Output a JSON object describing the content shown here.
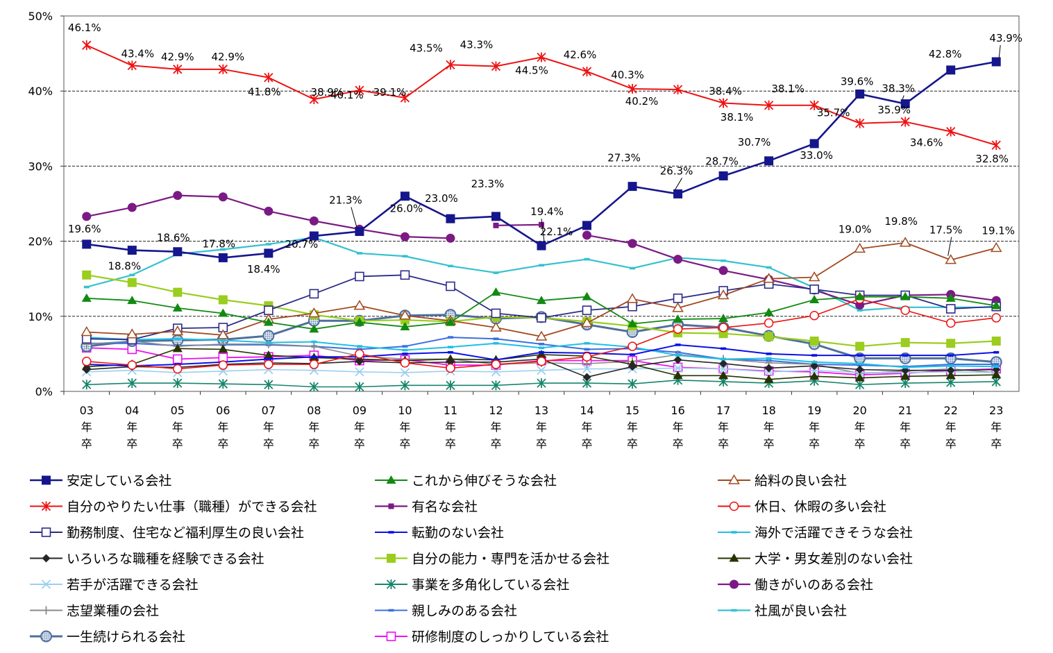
{
  "chart_data": {
    "type": "line",
    "ylim": [
      0,
      50
    ],
    "yticks": [
      0,
      10,
      20,
      30,
      40,
      50
    ],
    "ytick_labels": [
      "0%",
      "10%",
      "20%",
      "30%",
      "40%",
      "50%"
    ],
    "categories": [
      "03",
      "04",
      "05",
      "06",
      "07",
      "08",
      "09",
      "10",
      "11",
      "12",
      "13",
      "14",
      "15",
      "16",
      "17",
      "18",
      "19",
      "20",
      "21",
      "22",
      "23"
    ],
    "category_suffix": [
      "年",
      "卒"
    ],
    "legend_position": "bottom",
    "series": [
      {
        "name": "安定している会社",
        "color": "#16168c",
        "marker": "square-filled",
        "lw": 2.6,
        "values": [
          19.6,
          18.8,
          18.6,
          17.8,
          18.4,
          20.7,
          21.3,
          26.0,
          23.0,
          23.3,
          19.4,
          22.1,
          27.3,
          26.3,
          28.7,
          30.7,
          33.0,
          39.6,
          38.3,
          42.8,
          43.9
        ],
        "labels": [
          "19.6%",
          "18.8%",
          "18.6%",
          "17.8%",
          "18.4%",
          "20.7%",
          "21.3%",
          "26.0%",
          "23.0%",
          "23.3%",
          "19.4%",
          "22.1%",
          "27.3%",
          "26.3%",
          "28.7%",
          "30.7%",
          "33.0%",
          "39.6%",
          "38.3%",
          "42.8%",
          "43.9%"
        ]
      },
      {
        "name": "これから伸びそうな会社",
        "color": "#128a12",
        "marker": "triangle-filled",
        "lw": 1.8,
        "values": [
          12.4,
          12.1,
          11.1,
          10.4,
          9.2,
          8.3,
          9.2,
          8.6,
          9.2,
          13.2,
          12.1,
          12.6,
          9.0,
          9.6,
          9.7,
          10.5,
          12.2,
          12.6,
          12.6,
          12.4,
          11.4
        ]
      },
      {
        "name": "給料の良い会社",
        "color": "#a0491e",
        "marker": "triangle-open",
        "lw": 1.8,
        "values": [
          7.9,
          7.6,
          8.0,
          7.5,
          9.6,
          10.4,
          11.4,
          10.1,
          9.4,
          8.5,
          7.3,
          9.1,
          12.3,
          11.1,
          12.8,
          15.0,
          15.2,
          19.0,
          19.8,
          17.5,
          19.1
        ],
        "labels": [
          "",
          "",
          "",
          "",
          "",
          "",
          "",
          "",
          "",
          "",
          "",
          "",
          "",
          "",
          "",
          "",
          "",
          "19.0%",
          "19.8%",
          "17.5%",
          "19.1%"
        ]
      },
      {
        "name": "自分のやりたい仕事（職種）ができる会社",
        "color": "#ee1111",
        "marker": "star",
        "lw": 2.0,
        "values": [
          46.1,
          43.4,
          42.9,
          42.9,
          41.8,
          38.9,
          40.1,
          39.1,
          43.5,
          43.3,
          44.5,
          42.6,
          40.3,
          40.2,
          38.4,
          38.1,
          38.1,
          35.7,
          35.9,
          34.6,
          32.8
        ],
        "labels": [
          "46.1%",
          "43.4%",
          "42.9%",
          "42.9%",
          "41.8%",
          "38.9%",
          "40.1%",
          "39.1%",
          "43.5%",
          "43.3%",
          "44.5%",
          "42.6%",
          "40.3%",
          "40.2%",
          "38.4%",
          "38.1%",
          "38.1%",
          "35.7%",
          "35.9%",
          "34.6%",
          "32.8%"
        ]
      },
      {
        "name": "有名な会社",
        "color": "#7b1a84",
        "marker": "square-filled-small",
        "lw": 2.2,
        "values": [
          null,
          null,
          null,
          null,
          null,
          null,
          null,
          null,
          null,
          22.1,
          22.2,
          null,
          null,
          null,
          null,
          null,
          null,
          null,
          null,
          null,
          null
        ]
      },
      {
        "name": "休日、休暇の多い会社",
        "color": "#ee1111",
        "marker": "circle-open",
        "lw": 1.6,
        "values": [
          4.0,
          3.5,
          3.0,
          3.5,
          3.6,
          3.6,
          5.0,
          3.8,
          3.1,
          3.6,
          4.0,
          4.6,
          6.0,
          8.3,
          8.5,
          9.1,
          10.1,
          12.3,
          10.8,
          9.1,
          9.8
        ]
      },
      {
        "name": "勤務制度、住宅など福利厚生の良い会社",
        "color": "#2b2b88",
        "marker": "square-open",
        "lw": 1.8,
        "values": [
          7.0,
          6.9,
          8.4,
          8.5,
          10.8,
          13.0,
          15.3,
          15.5,
          14.0,
          10.4,
          9.8,
          10.8,
          11.3,
          12.4,
          13.4,
          14.3,
          13.6,
          12.8,
          12.8,
          11.0,
          11.3
        ]
      },
      {
        "name": "転勤のない会社",
        "color": "#0b10e8",
        "marker": "dash",
        "lw": 2.0,
        "values": [
          3.6,
          3.4,
          3.6,
          3.9,
          4.3,
          4.6,
          4.6,
          5.0,
          5.2,
          4.2,
          5.2,
          5.1,
          4.9,
          6.2,
          5.7,
          5.0,
          4.8,
          4.8,
          4.8,
          4.8,
          5.2
        ]
      },
      {
        "name": "海外で活躍できそうな会社",
        "color": "#1fbfe6",
        "marker": "dash",
        "lw": 2.0,
        "values": [
          7.2,
          6.9,
          7.0,
          6.8,
          6.5,
          6.6,
          6.0,
          5.5,
          5.9,
          6.4,
          5.8,
          6.4,
          5.9,
          4.8,
          4.3,
          4.4,
          3.9,
          3.7,
          3.2,
          3.4,
          3.3
        ]
      },
      {
        "name": "いろいろな職種を経験できる会社",
        "color": "#262626",
        "marker": "diamond-filled",
        "lw": 1.6,
        "values": [
          2.9,
          3.3,
          3.2,
          3.6,
          3.8,
          3.7,
          4.0,
          3.8,
          3.9,
          3.9,
          4.3,
          1.9,
          3.3,
          4.2,
          3.7,
          3.1,
          3.4,
          2.9,
          2.8,
          2.8,
          2.9
        ]
      },
      {
        "name": "自分の能力・専門を活かせる会社",
        "color": "#9acd1e",
        "marker": "square-filled",
        "lw": 2.2,
        "values": [
          15.5,
          14.5,
          13.2,
          12.2,
          11.4,
          10.2,
          9.4,
          9.5,
          9.3,
          9.9,
          9.8,
          9.3,
          8.7,
          7.8,
          7.7,
          7.3,
          6.7,
          6.0,
          6.5,
          6.4,
          6.7
        ]
      },
      {
        "name": "大学・男女差別のない会社",
        "color": "#263300",
        "marker": "triangle-filled",
        "lw": 1.6,
        "values": [
          3.3,
          3.6,
          5.7,
          5.6,
          4.8,
          4.5,
          4.3,
          4.1,
          4.3,
          4.2,
          4.9,
          4.7,
          3.6,
          2.1,
          2.1,
          1.6,
          2.0,
          1.8,
          2.0,
          2.1,
          2.2
        ]
      },
      {
        "name": "若手が活躍できる会社",
        "color": "#9bcff0",
        "marker": "x",
        "lw": 1.6,
        "values": [
          2.6,
          2.8,
          2.5,
          2.7,
          2.9,
          2.8,
          2.6,
          2.5,
          2.7,
          2.6,
          2.8,
          3.0,
          3.0,
          3.1,
          3.0,
          2.6,
          2.8,
          2.5,
          2.5,
          2.6,
          2.5
        ]
      },
      {
        "name": "事業を多角化している会社",
        "color": "#16856b",
        "marker": "star",
        "lw": 1.6,
        "values": [
          0.9,
          1.1,
          1.1,
          1.0,
          0.9,
          0.6,
          0.6,
          0.8,
          0.8,
          0.8,
          1.1,
          1.1,
          1.0,
          1.5,
          1.3,
          1.1,
          1.4,
          0.9,
          1.1,
          1.2,
          1.3
        ]
      },
      {
        "name": "働きがいのある会社",
        "color": "#7b1a84",
        "marker": "circle-filled",
        "lw": 2.2,
        "values": [
          23.3,
          24.5,
          26.1,
          25.9,
          24.0,
          22.7,
          21.6,
          20.6,
          20.4,
          null,
          null,
          20.8,
          19.7,
          17.6,
          16.1,
          14.9,
          13.5,
          11.5,
          12.8,
          12.9,
          12.1
        ]
      },
      {
        "name": "志望業種の会社",
        "color": "#8a8a8a",
        "marker": "plus",
        "lw": 1.6,
        "values": [
          6.3,
          6.7,
          6.0,
          6.3,
          6.3,
          6.0,
          4.7,
          4.3,
          4.3,
          3.6,
          3.8,
          3.7,
          4.0,
          4.9,
          4.3,
          3.8,
          3.6,
          2.4,
          2.7,
          3.0,
          2.5
        ]
      },
      {
        "name": "親しみのある会社",
        "color": "#3b6fe0",
        "marker": "dash",
        "lw": 2.0,
        "values": [
          6.4,
          6.4,
          6.1,
          6.2,
          6.2,
          6.0,
          5.6,
          6.0,
          7.2,
          7.0,
          6.3,
          5.6,
          5.7,
          5.2,
          4.3,
          4.1,
          3.6,
          3.5,
          3.3,
          3.6,
          3.6
        ]
      },
      {
        "name": "社風が良い会社",
        "color": "#35c1cf",
        "marker": "dash",
        "lw": 2.2,
        "values": [
          13.9,
          15.5,
          18.3,
          18.9,
          19.6,
          20.5,
          18.4,
          18.0,
          16.7,
          15.8,
          16.8,
          17.6,
          16.4,
          17.8,
          17.4,
          16.5,
          13.8,
          10.8,
          11.2,
          11.2,
          11.2
        ]
      },
      {
        "name": "一生続けられる会社",
        "color": "#4f6f9c",
        "marker": "circle-pattern",
        "lw": 3.0,
        "values": [
          6.0,
          6.7,
          6.8,
          6.9,
          7.4,
          9.4,
          9.4,
          10.1,
          10.2,
          9.7,
          9.9,
          8.9,
          7.9,
          8.9,
          8.5,
          7.4,
          6.3,
          4.4,
          4.4,
          4.4,
          3.9
        ]
      },
      {
        "name": "研修制度のしっかりしている会社",
        "color": "#ee10ee",
        "marker": "square-open",
        "lw": 1.8,
        "values": [
          5.8,
          5.6,
          4.3,
          4.5,
          4.6,
          4.8,
          4.1,
          4.2,
          3.5,
          3.5,
          4.1,
          4.1,
          4.1,
          3.2,
          3.0,
          2.7,
          2.6,
          2.2,
          2.4,
          2.8,
          3.0
        ]
      }
    ]
  }
}
